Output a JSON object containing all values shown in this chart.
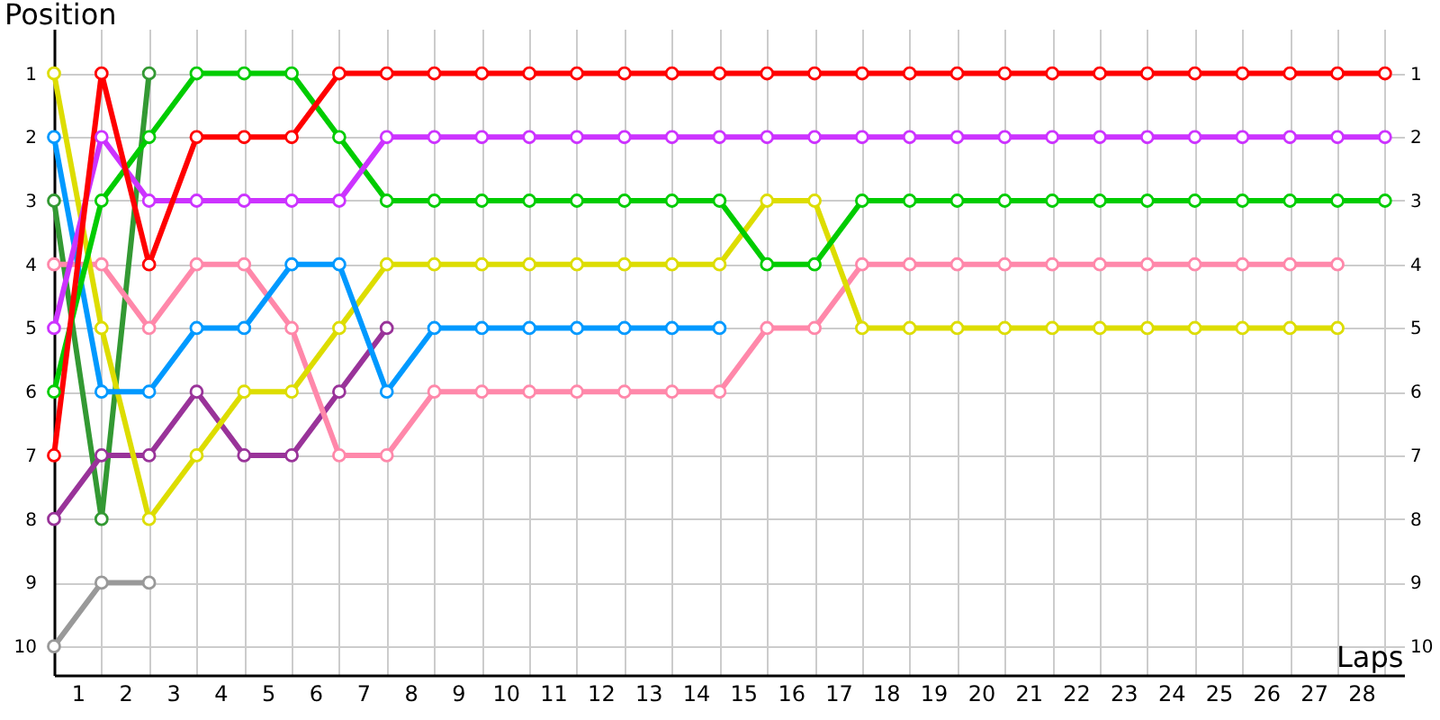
{
  "chart_data": {
    "type": "line",
    "xlabel": "Laps",
    "ylabel": "Position",
    "x": [
      0,
      1,
      2,
      3,
      4,
      5,
      6,
      7,
      8,
      9,
      10,
      11,
      12,
      13,
      14,
      15,
      16,
      17,
      18,
      19,
      20,
      21,
      22,
      23,
      24,
      25,
      26,
      27,
      28
    ],
    "xlim": [
      0,
      28.4
    ],
    "xticks": [
      {
        "value": 0.5,
        "label": "1"
      },
      {
        "value": 1.5,
        "label": "2"
      },
      {
        "value": 2.5,
        "label": "3"
      },
      {
        "value": 3.5,
        "label": "4"
      },
      {
        "value": 4.5,
        "label": "5"
      },
      {
        "value": 5.5,
        "label": "6"
      },
      {
        "value": 6.5,
        "label": "7"
      },
      {
        "value": 7.5,
        "label": "8"
      },
      {
        "value": 8.5,
        "label": "9"
      },
      {
        "value": 9.5,
        "label": "10"
      },
      {
        "value": 10.5,
        "label": "11"
      },
      {
        "value": 11.5,
        "label": "12"
      },
      {
        "value": 12.5,
        "label": "13"
      },
      {
        "value": 13.5,
        "label": "14"
      },
      {
        "value": 14.5,
        "label": "15"
      },
      {
        "value": 15.5,
        "label": "16"
      },
      {
        "value": 16.5,
        "label": "17"
      },
      {
        "value": 17.5,
        "label": "18"
      },
      {
        "value": 18.5,
        "label": "19"
      },
      {
        "value": 19.5,
        "label": "20"
      },
      {
        "value": 20.5,
        "label": "21"
      },
      {
        "value": 21.5,
        "label": "22"
      },
      {
        "value": 22.5,
        "label": "23"
      },
      {
        "value": 23.5,
        "label": "24"
      },
      {
        "value": 24.5,
        "label": "25"
      },
      {
        "value": 25.5,
        "label": "26"
      },
      {
        "value": 26.5,
        "label": "27"
      },
      {
        "value": 27.5,
        "label": "28"
      }
    ],
    "ylim": [
      10.45,
      0.3
    ],
    "yticks": [
      1,
      2,
      3,
      4,
      5,
      6,
      7,
      8,
      9,
      10
    ],
    "y2lim": [
      10.45,
      0.3
    ],
    "y2ticks": [
      1,
      2,
      3,
      4,
      5,
      6,
      7,
      8,
      9,
      10
    ],
    "grid": true,
    "marker": "circle",
    "line_style": "solid",
    "series": [
      {
        "color": "#999999",
        "values": [
          10,
          9,
          9,
          null,
          null,
          null,
          null,
          null,
          null,
          null,
          null,
          null,
          null,
          null,
          null,
          null,
          null,
          null,
          null,
          null,
          null,
          null,
          null,
          null,
          null,
          null,
          null,
          null,
          null
        ]
      },
      {
        "color": "#339933",
        "values": [
          3,
          8,
          1,
          null,
          null,
          null,
          null,
          null,
          null,
          null,
          null,
          null,
          null,
          null,
          null,
          null,
          null,
          null,
          null,
          null,
          null,
          null,
          null,
          null,
          null,
          null,
          null,
          null,
          null
        ]
      },
      {
        "color": "#993399",
        "values": [
          8,
          7,
          7,
          6,
          7,
          7,
          6,
          5,
          null,
          null,
          null,
          null,
          null,
          null,
          null,
          null,
          null,
          null,
          null,
          null,
          null,
          null,
          null,
          null,
          null,
          null,
          null,
          null,
          null
        ]
      },
      {
        "color": "#ff88aa",
        "values": [
          4,
          4,
          5,
          4,
          4,
          5,
          7,
          7,
          6,
          6,
          6,
          6,
          6,
          6,
          6,
          5,
          5,
          4,
          4,
          4,
          4,
          4,
          4,
          4,
          4,
          4,
          4,
          4,
          null
        ]
      },
      {
        "color": "#dddd00",
        "values": [
          1,
          5,
          8,
          7,
          6,
          6,
          5,
          4,
          4,
          4,
          4,
          4,
          4,
          4,
          4,
          3,
          3,
          5,
          5,
          5,
          5,
          5,
          5,
          5,
          5,
          5,
          5,
          5,
          null
        ]
      },
      {
        "color": "#0099ff",
        "values": [
          2,
          6,
          6,
          5,
          5,
          4,
          4,
          6,
          5,
          5,
          5,
          5,
          5,
          5,
          5,
          null,
          null,
          null,
          null,
          null,
          null,
          null,
          null,
          null,
          null,
          null,
          null,
          null,
          null
        ]
      },
      {
        "color": "#00cc00",
        "values": [
          6,
          3,
          2,
          1,
          1,
          1,
          2,
          3,
          3,
          3,
          3,
          3,
          3,
          3,
          3,
          4,
          4,
          3,
          3,
          3,
          3,
          3,
          3,
          3,
          3,
          3,
          3,
          3,
          3
        ]
      },
      {
        "color": "#cc33ff",
        "values": [
          5,
          2,
          3,
          3,
          3,
          3,
          3,
          2,
          2,
          2,
          2,
          2,
          2,
          2,
          2,
          2,
          2,
          2,
          2,
          2,
          2,
          2,
          2,
          2,
          2,
          2,
          2,
          2,
          2
        ]
      },
      {
        "color": "#ff0000",
        "values": [
          7,
          1,
          4,
          2,
          2,
          2,
          1,
          1,
          1,
          1,
          1,
          1,
          1,
          1,
          1,
          1,
          1,
          1,
          1,
          1,
          1,
          1,
          1,
          1,
          1,
          1,
          1,
          1,
          1
        ]
      }
    ]
  }
}
